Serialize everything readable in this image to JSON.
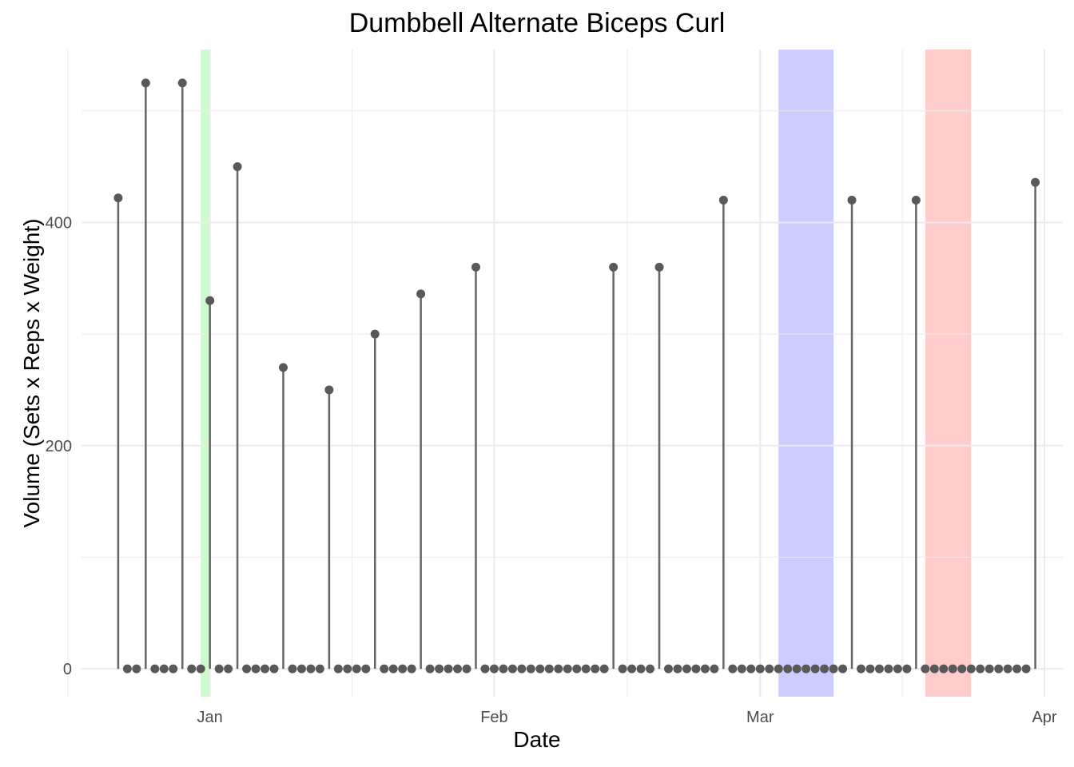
{
  "chart_data": {
    "type": "lollipop",
    "title": "Dumbbell Alternate Biceps Curl",
    "xlabel": "Date",
    "ylabel": "Volume (Sets x Reps x Weight)",
    "x_ticks": [
      "Jan",
      "Feb",
      "Mar",
      "Apr"
    ],
    "x_tick_dates": [
      "2024-01-01",
      "2024-02-01",
      "2024-03-01",
      "2024-04-01"
    ],
    "y_ticks": [
      0,
      200,
      400
    ],
    "ylim": [
      -25,
      555
    ],
    "xlim": [
      "2023-12-18",
      "2024-04-03"
    ],
    "grid": true,
    "colors": {
      "stem": "#666666",
      "point": "#595959",
      "grid": "#ebebeb",
      "highlight_green": "#00ee00",
      "highlight_blue": "#0000ff",
      "highlight_red": "#ff0000"
    },
    "highlights": [
      {
        "start": "2023-12-31",
        "end": "2024-01-01",
        "color": "highlight_green"
      },
      {
        "start": "2024-03-03",
        "end": "2024-03-09",
        "color": "highlight_blue"
      },
      {
        "start": "2024-03-19",
        "end": "2024-03-24",
        "color": "highlight_red"
      }
    ],
    "series": [
      {
        "x": [
          "2023-12-22",
          "2023-12-23",
          "2023-12-24",
          "2023-12-25",
          "2023-12-26",
          "2023-12-27",
          "2023-12-28",
          "2023-12-29",
          "2023-12-30",
          "2023-12-31",
          "2024-01-01",
          "2024-01-02",
          "2024-01-03",
          "2024-01-04",
          "2024-01-05",
          "2024-01-06",
          "2024-01-07",
          "2024-01-08",
          "2024-01-09",
          "2024-01-10",
          "2024-01-11",
          "2024-01-12",
          "2024-01-13",
          "2024-01-14",
          "2024-01-15",
          "2024-01-16",
          "2024-01-17",
          "2024-01-18",
          "2024-01-19",
          "2024-01-20",
          "2024-01-21",
          "2024-01-22",
          "2024-01-23",
          "2024-01-24",
          "2024-01-25",
          "2024-01-26",
          "2024-01-27",
          "2024-01-28",
          "2024-01-29",
          "2024-01-30",
          "2024-01-31",
          "2024-02-01",
          "2024-02-02",
          "2024-02-03",
          "2024-02-04",
          "2024-02-05",
          "2024-02-06",
          "2024-02-07",
          "2024-02-08",
          "2024-02-09",
          "2024-02-10",
          "2024-02-11",
          "2024-02-12",
          "2024-02-13",
          "2024-02-14",
          "2024-02-15",
          "2024-02-16",
          "2024-02-17",
          "2024-02-18",
          "2024-02-19",
          "2024-02-20",
          "2024-02-21",
          "2024-02-22",
          "2024-02-23",
          "2024-02-24",
          "2024-02-25",
          "2024-02-26",
          "2024-02-27",
          "2024-02-28",
          "2024-02-29",
          "2024-03-01",
          "2024-03-02",
          "2024-03-03",
          "2024-03-04",
          "2024-03-05",
          "2024-03-06",
          "2024-03-07",
          "2024-03-08",
          "2024-03-09",
          "2024-03-10",
          "2024-03-11",
          "2024-03-12",
          "2024-03-13",
          "2024-03-14",
          "2024-03-15",
          "2024-03-16",
          "2024-03-17",
          "2024-03-18",
          "2024-03-19",
          "2024-03-20",
          "2024-03-21",
          "2024-03-22",
          "2024-03-23",
          "2024-03-24",
          "2024-03-25",
          "2024-03-26",
          "2024-03-27",
          "2024-03-28",
          "2024-03-29",
          "2024-03-30",
          "2024-03-31"
        ],
        "y": [
          422,
          0,
          0,
          525,
          0,
          0,
          0,
          525,
          0,
          0,
          330,
          0,
          0,
          450,
          0,
          0,
          0,
          0,
          270,
          0,
          0,
          0,
          0,
          250,
          0,
          0,
          0,
          0,
          300,
          0,
          0,
          0,
          0,
          336,
          0,
          0,
          0,
          0,
          0,
          360,
          0,
          0,
          0,
          0,
          0,
          0,
          0,
          0,
          0,
          0,
          0,
          0,
          0,
          0,
          360,
          0,
          0,
          0,
          0,
          360,
          0,
          0,
          0,
          0,
          0,
          0,
          420,
          0,
          0,
          0,
          0,
          0,
          0,
          0,
          0,
          0,
          0,
          0,
          0,
          0,
          420,
          0,
          0,
          0,
          0,
          0,
          0,
          420,
          0,
          0,
          0,
          0,
          0,
          0,
          0,
          0,
          0,
          0,
          0,
          0,
          436
        ]
      }
    ]
  }
}
